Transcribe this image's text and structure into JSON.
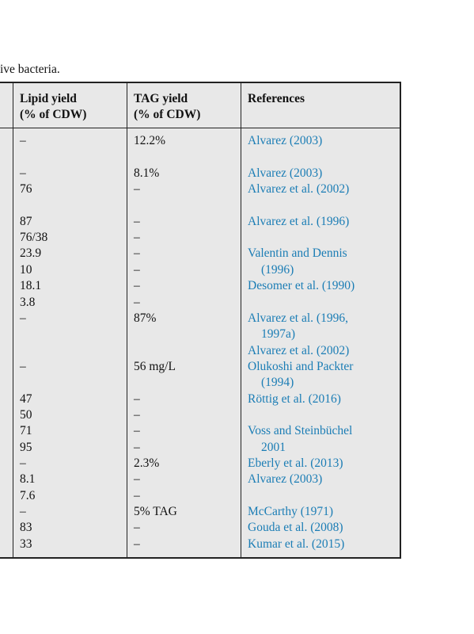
{
  "caption": "ive bacteria.",
  "table": {
    "header": {
      "lipid": [
        "Lipid yield",
        "(% of CDW)"
      ],
      "tag": [
        "TAG yield",
        "(% of CDW)"
      ],
      "reference": "References"
    },
    "lines": [
      {
        "lipid": "–",
        "tag": "12.2%",
        "reference": "Alvarez (2003)"
      },
      {
        "lipid": "–",
        "tag": "8.1%",
        "reference": "Alvarez (2003)"
      },
      {
        "lipid": "76",
        "tag": "–",
        "reference": "Alvarez et al. (2002)"
      },
      {
        "lipid": "87",
        "tag": "–",
        "reference": "Alvarez et al. (1996)"
      },
      {
        "lipid": "76/38",
        "tag": "–"
      },
      {
        "lipid": "23.9",
        "tag": "–",
        "reference": "Valentin and Dennis"
      },
      {
        "lipid": "10",
        "tag": "–",
        "reference": "(1996)"
      },
      {
        "lipid": "18.1",
        "tag": "–",
        "reference": "Desomer et al. (1990)"
      },
      {
        "lipid": "3.8",
        "tag": "–"
      },
      {
        "lipid": "–",
        "tag": "87%",
        "reference": "Alvarez et al. (1996,"
      },
      {
        "reference": "1997a)"
      },
      {
        "reference": "Alvarez et al. (2002)"
      },
      {
        "lipid": "–",
        "tag": "56 mg/L",
        "reference": "Olukoshi and Packter"
      },
      {
        "reference": "(1994)"
      },
      {
        "lipid": "47",
        "tag": "–",
        "reference": "Röttig et al. (2016)"
      },
      {
        "lipid": "50",
        "tag": "–"
      },
      {
        "lipid": "71",
        "tag": "–",
        "reference": "Voss and Steinbüchel"
      },
      {
        "lipid": "95",
        "tag": "–",
        "reference": "2001"
      },
      {
        "lipid": "–",
        "tag": "2.3%",
        "reference": "Eberly et al. (2013)"
      },
      {
        "lipid": "8.1",
        "tag": "–",
        "reference": "Alvarez (2003)"
      },
      {
        "lipid": "7.6",
        "tag": "–"
      },
      {
        "lipid": "–",
        "tag": "5% TAG",
        "reference": "McCarthy (1971)"
      },
      {
        "lipid": "83",
        "tag": "–",
        "reference": "Gouda et al. (2008)"
      },
      {
        "lipid": "33",
        "tag": "–",
        "reference": "Kumar et al. (2015)"
      }
    ]
  }
}
